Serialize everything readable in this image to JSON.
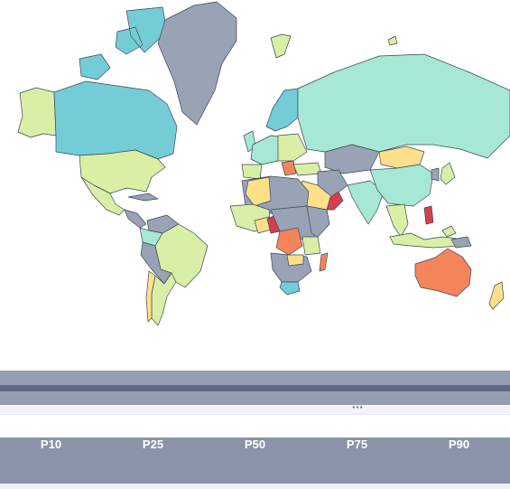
{
  "legend": {
    "percentile_labels": [
      "P10",
      "P25",
      "P50",
      "P75",
      "P90"
    ],
    "more_indicator": "···"
  },
  "colors": {
    "background": "#ffffff",
    "no_data": "#9aa3b5",
    "border": "#3c4654",
    "p10": "#d53e4f",
    "p25": "#f4845a",
    "p50": "#fee08b",
    "p75": "#d9efa6",
    "p90": "#a6e8d4",
    "blue": "#74cdd6",
    "band": "#959eb1",
    "band_line": "#5f6b85",
    "pct_bar": "#8a93a8"
  }
}
